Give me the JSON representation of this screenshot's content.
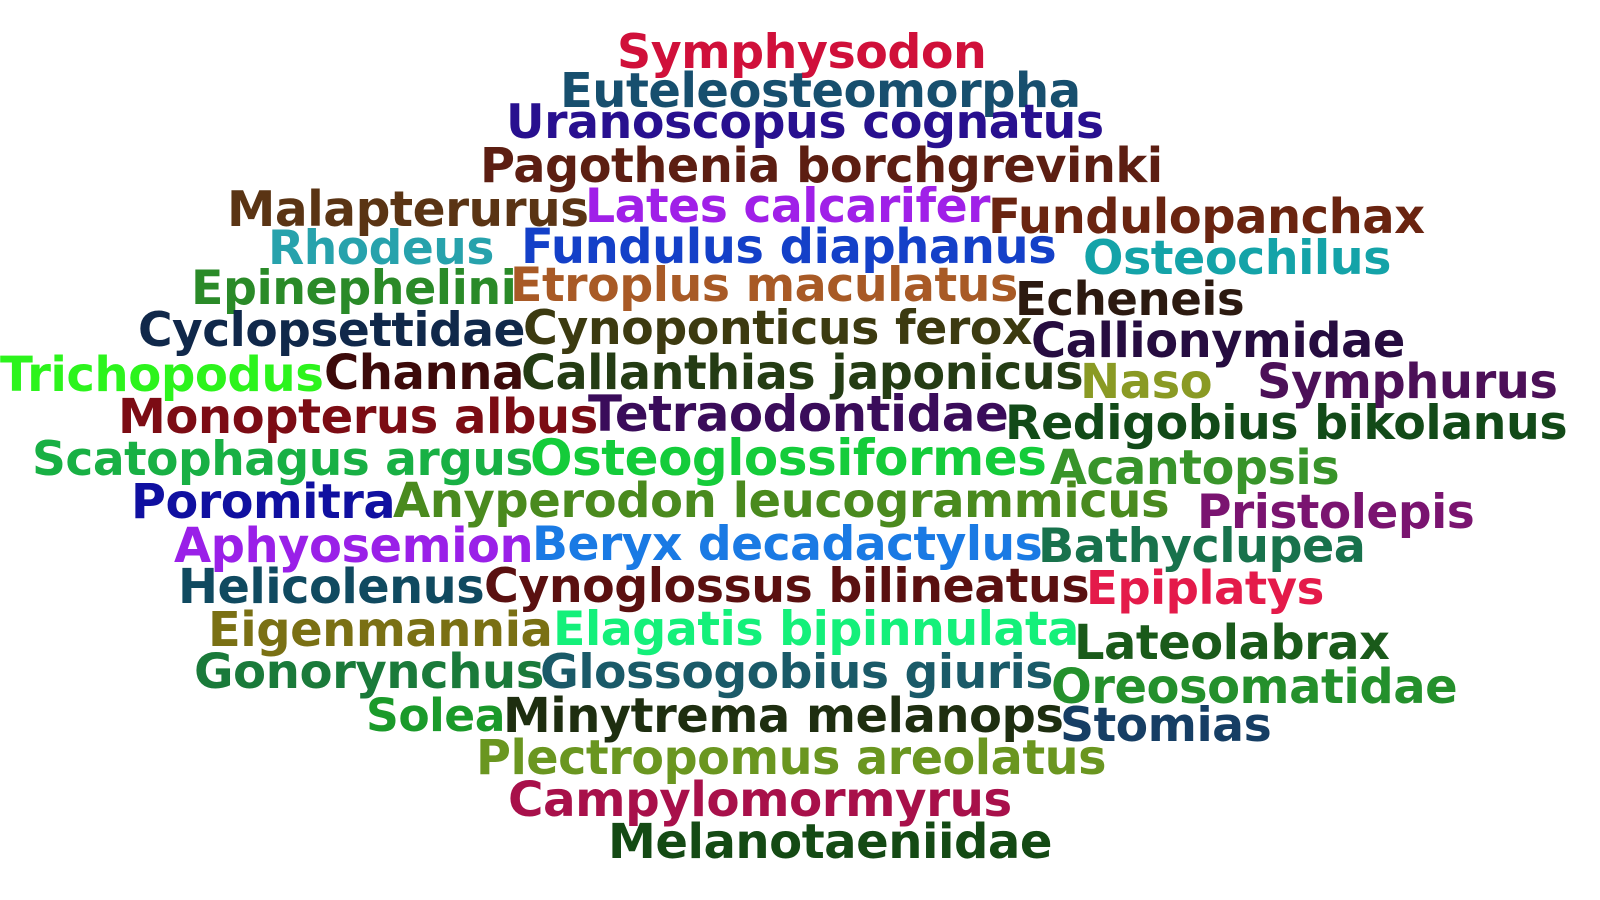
{
  "words": [
    {
      "text": "Symphysodon",
      "color": "#d0103a"
    },
    {
      "text": "Euteleosteomorpha",
      "color": "#174f6e"
    },
    {
      "text": "Uranoscopus cognatus",
      "color": "#28108f"
    },
    {
      "text": "Pagothenia borchgrevinki",
      "color": "#5c1e12"
    },
    {
      "text": "Malapterurus",
      "color": "#5a3414"
    },
    {
      "text": "Lates calcarifer",
      "color": "#a020e8"
    },
    {
      "text": "Fundulopanchax",
      "color": "#6a2410"
    },
    {
      "text": "Rhodeus",
      "color": "#27a2ac"
    },
    {
      "text": "Fundulus diaphanus",
      "color": "#1440c8"
    },
    {
      "text": "Osteochilus",
      "color": "#14a3a8"
    },
    {
      "text": "Epinephelini",
      "color": "#2a8a28"
    },
    {
      "text": "Etroplus maculatus",
      "color": "#a85a26"
    },
    {
      "text": "Echeneis",
      "color": "#2c1a10"
    },
    {
      "text": "Cyclopsettidae",
      "color": "#10284a"
    },
    {
      "text": "Cynoponticus ferox",
      "color": "#3c3a10"
    },
    {
      "text": "Callionymidae",
      "color": "#260c40"
    },
    {
      "text": "Trichopodus",
      "color": "#2cf41c"
    },
    {
      "text": "Channa",
      "color": "#3c0a0a"
    },
    {
      "text": "Callanthias japonicus",
      "color": "#243c14"
    },
    {
      "text": "Naso",
      "color": "#8a9a24"
    },
    {
      "text": "Symphurus",
      "color": "#4c1058"
    },
    {
      "text": "Monopterus albus",
      "color": "#7c0c14"
    },
    {
      "text": "Tetraodontidae",
      "color": "#3a0c5a"
    },
    {
      "text": "Redigobius bikolanus",
      "color": "#124a18"
    },
    {
      "text": "Scatophagus argus",
      "color": "#18b044"
    },
    {
      "text": "Osteoglossiformes",
      "color": "#14cc3a"
    },
    {
      "text": "Acantopsis",
      "color": "#38942a"
    },
    {
      "text": "Poromitra",
      "color": "#1010a0"
    },
    {
      "text": "Anyperodon leucogrammicus",
      "color": "#4a8a1e"
    },
    {
      "text": "Pristolepis",
      "color": "#7a1470"
    },
    {
      "text": "Aphyosemion",
      "color": "#9a20e8"
    },
    {
      "text": "Beryx decadactylus",
      "color": "#1a7ae4"
    },
    {
      "text": "Bathyclupea",
      "color": "#18724c"
    },
    {
      "text": "Helicolenus",
      "color": "#104a60"
    },
    {
      "text": "Cynoglossus bilineatus",
      "color": "#5a1010"
    },
    {
      "text": "Epiplatys",
      "color": "#e41a4a"
    },
    {
      "text": "Eigenmannia",
      "color": "#7a7014"
    },
    {
      "text": "Elagatis bipinnulata",
      "color": "#14f07a"
    },
    {
      "text": "Lateolabrax",
      "color": "#1a5a1a"
    },
    {
      "text": "Gonorynchus",
      "color": "#1a7a3a"
    },
    {
      "text": "Glossogobius giuris",
      "color": "#1a5a68"
    },
    {
      "text": "Oreosomatidae",
      "color": "#24902c"
    },
    {
      "text": "Solea",
      "color": "#1a9a2a"
    },
    {
      "text": "Minytrema melanops",
      "color": "#1e2e10"
    },
    {
      "text": "Stomias",
      "color": "#163e64"
    },
    {
      "text": "Plectropomus areolatus",
      "color": "#6a9620"
    },
    {
      "text": "Campylomormyrus",
      "color": "#a8104a"
    },
    {
      "text": "Melanotaeniidae",
      "color": "#144a14"
    }
  ]
}
